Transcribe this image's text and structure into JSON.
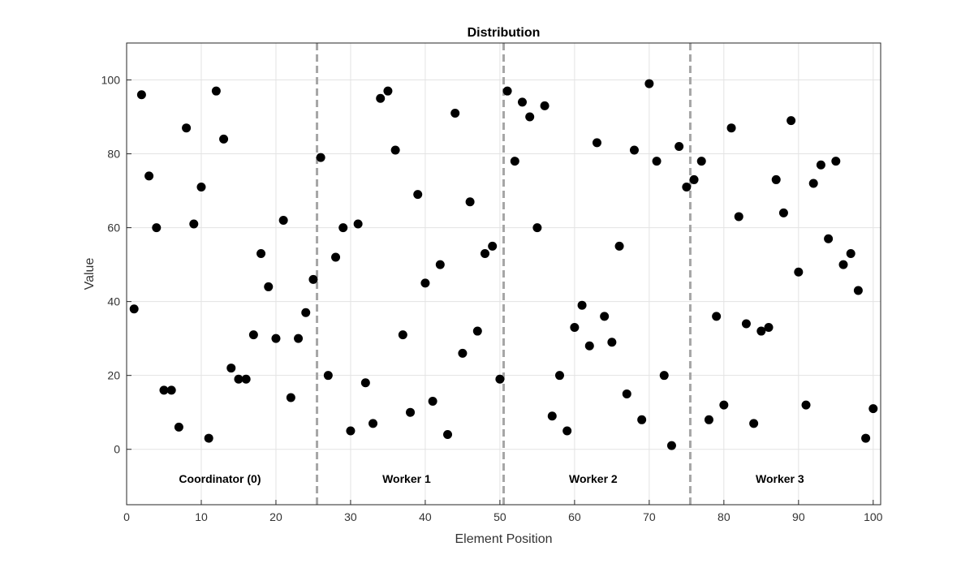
{
  "chart_data": {
    "type": "scatter",
    "title": "Distribution",
    "xlabel": "Element Position",
    "ylabel": "Value",
    "xlim": [
      0,
      101
    ],
    "ylim": [
      -15,
      110
    ],
    "xticks": [
      0,
      10,
      20,
      30,
      40,
      50,
      60,
      70,
      80,
      90,
      100
    ],
    "yticks": [
      0,
      20,
      40,
      60,
      80,
      100
    ],
    "grid": true,
    "marker_color": "#000000",
    "divider_color": "#a6a6a6",
    "dividers": [
      25.5,
      50.5,
      75.5
    ],
    "regions": [
      {
        "label": "Coordinator (0)",
        "x": 12.5,
        "y": -8
      },
      {
        "label": "Worker 1",
        "x": 37.5,
        "y": -8
      },
      {
        "label": "Worker 2",
        "x": 62.5,
        "y": -8
      },
      {
        "label": "Worker 3",
        "x": 87.5,
        "y": -8
      }
    ],
    "x": [
      1,
      2,
      3,
      4,
      5,
      6,
      7,
      8,
      9,
      10,
      11,
      12,
      13,
      14,
      15,
      16,
      17,
      18,
      19,
      20,
      21,
      22,
      23,
      24,
      25,
      26,
      27,
      28,
      29,
      30,
      31,
      32,
      33,
      34,
      35,
      36,
      37,
      38,
      39,
      40,
      41,
      42,
      43,
      44,
      45,
      46,
      47,
      48,
      49,
      50,
      51,
      52,
      53,
      54,
      55,
      56,
      57,
      58,
      59,
      60,
      61,
      62,
      63,
      64,
      65,
      66,
      67,
      68,
      69,
      70,
      71,
      72,
      73,
      74,
      75,
      76,
      77,
      78,
      79,
      80,
      81,
      82,
      83,
      84,
      85,
      86,
      87,
      88,
      89,
      90,
      91,
      92,
      93,
      94,
      95,
      96,
      97,
      98,
      99,
      100
    ],
    "y": [
      38,
      96,
      74,
      60,
      16,
      16,
      6,
      87,
      61,
      71,
      3,
      97,
      84,
      22,
      19,
      19,
      31,
      53,
      44,
      30,
      62,
      14,
      30,
      37,
      46,
      79,
      20,
      52,
      60,
      5,
      61,
      18,
      7,
      95,
      97,
      81,
      31,
      10,
      69,
      45,
      13,
      50,
      4,
      91,
      26,
      67,
      32,
      53,
      55,
      19,
      97,
      78,
      94,
      90,
      60,
      93,
      9,
      20,
      5,
      33,
      39,
      28,
      83,
      36,
      29,
      55,
      15,
      81,
      8,
      99,
      78,
      20,
      1,
      82,
      71,
      73,
      78,
      8,
      36,
      12,
      87,
      63,
      34,
      7,
      32,
      33,
      73,
      64,
      89,
      48,
      12,
      72,
      77,
      57,
      78,
      50,
      53,
      43,
      3,
      11
    ]
  }
}
